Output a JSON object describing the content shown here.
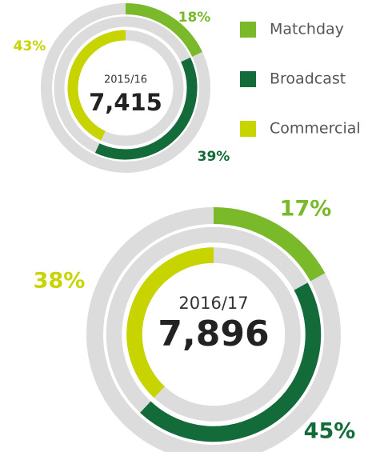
{
  "chart_data": [
    {
      "type": "radial",
      "title": "2015/16",
      "total": {
        "value": 7415,
        "label": "7,415"
      },
      "categories": [
        "Matchday",
        "Broadcast",
        "Commercial"
      ],
      "colors": [
        "#7ab929",
        "#146b3a",
        "#c8d400"
      ],
      "values": [
        18,
        39,
        43
      ],
      "value_labels": [
        "18%",
        "39%",
        "43%"
      ]
    },
    {
      "type": "radial",
      "title": "2016/17",
      "total": {
        "value": 7896,
        "label": "7,896"
      },
      "values": [
        17,
        45,
        38
      ],
      "value_labels": [
        "17%",
        "45%",
        "38%"
      ]
    }
  ]
}
